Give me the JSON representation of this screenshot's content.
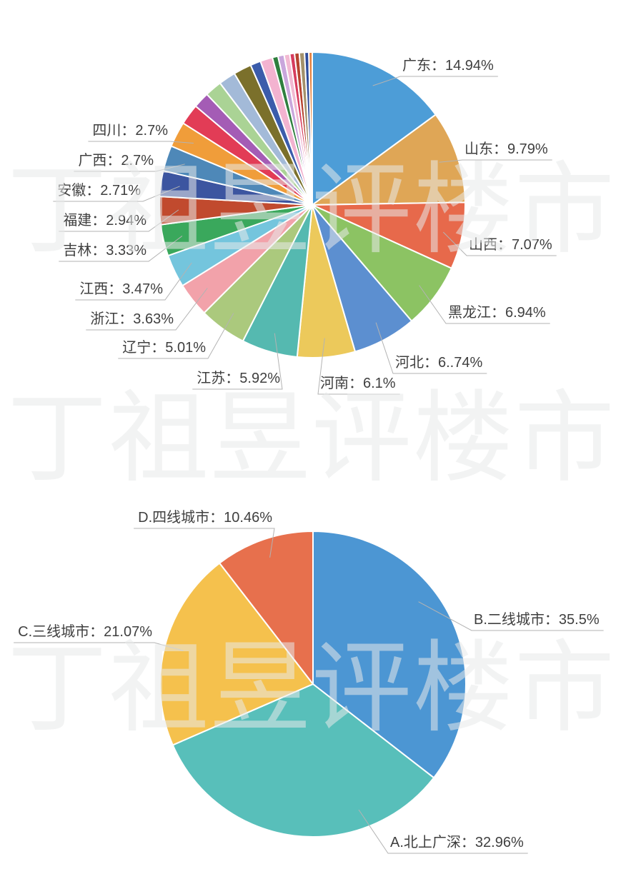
{
  "watermark": {
    "text": "丁祖昱评楼市",
    "color": "#ebebeb"
  },
  "chart_data": [
    {
      "type": "pie",
      "title": "",
      "legend_position": "none",
      "labels_style": "outside-leader-lines",
      "slices": [
        {
          "label": "广东",
          "value": 14.94,
          "display": "广东：14.94%",
          "color": "#4d9dd7",
          "labeled": true
        },
        {
          "label": "山东",
          "value": 9.79,
          "display": "山东：9.79%",
          "color": "#dfa656",
          "labeled": true
        },
        {
          "label": "山西",
          "value": 7.07,
          "display": "山西：7.07%",
          "color": "#e7694b",
          "labeled": true
        },
        {
          "label": "黑龙江",
          "value": 6.94,
          "display": "黑龙江：6.94%",
          "color": "#8cc363",
          "labeled": true
        },
        {
          "label": "河北",
          "value": 6.74,
          "display": "河北：6..74%",
          "color": "#5c8fd0",
          "labeled": true
        },
        {
          "label": "河南",
          "value": 6.1,
          "display": "河南：6.1%",
          "color": "#ecc95b",
          "labeled": true
        },
        {
          "label": "江苏",
          "value": 5.92,
          "display": "江苏：5.92%",
          "color": "#55b9b0",
          "labeled": true
        },
        {
          "label": "辽宁",
          "value": 5.01,
          "display": "辽宁：5.01%",
          "color": "#abc97d",
          "labeled": true
        },
        {
          "label": "浙江",
          "value": 3.63,
          "display": "浙江：3.63%",
          "color": "#f2a2aa",
          "labeled": true
        },
        {
          "label": "江西",
          "value": 3.47,
          "display": "江西：3.47%",
          "color": "#74c5dd",
          "labeled": true
        },
        {
          "label": "吉林",
          "value": 3.33,
          "display": "吉林：3.33%",
          "color": "#3aa85c",
          "labeled": true
        },
        {
          "label": "福建",
          "value": 2.94,
          "display": "福建：2.94%",
          "color": "#c14a2e",
          "labeled": true
        },
        {
          "label": "安徽",
          "value": 2.71,
          "display": "安徽：2.71%",
          "color": "#3c55a0",
          "labeled": true
        },
        {
          "label": "广西",
          "value": 2.7,
          "display": "广西：2.7%",
          "color": "#4e88b8",
          "labeled": true
        },
        {
          "label": "四川",
          "value": 2.7,
          "display": "四川：2.7%",
          "color": "#f09d3a",
          "labeled": true
        },
        {
          "label": "",
          "value": 2.2,
          "color": "#e23c56",
          "labeled": false,
          "estimated": true
        },
        {
          "label": "",
          "value": 1.7,
          "color": "#a45cb5",
          "labeled": false,
          "estimated": true
        },
        {
          "label": "",
          "value": 1.8,
          "color": "#aad395",
          "labeled": false,
          "estimated": true
        },
        {
          "label": "",
          "value": 1.8,
          "color": "#a3bad8",
          "labeled": false,
          "estimated": true
        },
        {
          "label": "",
          "value": 1.9,
          "color": "#7b702b",
          "labeled": false,
          "estimated": true
        },
        {
          "label": "",
          "value": 1.1,
          "color": "#3b5cab",
          "labeled": false,
          "estimated": true
        },
        {
          "label": "",
          "value": 1.3,
          "color": "#f3b3d0",
          "labeled": false,
          "estimated": true
        },
        {
          "label": "",
          "value": 0.6,
          "color": "#2e7f3e",
          "labeled": false,
          "estimated": true
        },
        {
          "label": "",
          "value": 0.65,
          "color": "#c9a6dc",
          "labeled": false,
          "estimated": true
        },
        {
          "label": "",
          "value": 0.6,
          "color": "#f2b9d2",
          "labeled": false,
          "estimated": true
        },
        {
          "label": "",
          "value": 0.5,
          "color": "#d63c5e",
          "labeled": false,
          "estimated": true
        },
        {
          "label": "",
          "value": 0.5,
          "color": "#b6432e",
          "labeled": false,
          "estimated": true
        },
        {
          "label": "",
          "value": 0.55,
          "color": "#a3916b",
          "labeled": false,
          "estimated": true
        },
        {
          "label": "",
          "value": 0.45,
          "color": "#2e4c9b",
          "labeled": false,
          "estimated": true
        },
        {
          "label": "",
          "value": 0.36,
          "color": "#e5813d",
          "labeled": false,
          "estimated": true
        }
      ]
    },
    {
      "type": "pie",
      "title": "",
      "legend_position": "none",
      "labels_style": "outside-leader-lines",
      "slices": [
        {
          "label": "B.二线城市",
          "value": 35.5,
          "display": "B.二线城市：35.5%",
          "color": "#4c96d3",
          "labeled": true
        },
        {
          "label": "A.北上广深",
          "value": 32.96,
          "display": "A.北上广深：32.96%",
          "color": "#58bfba",
          "labeled": true
        },
        {
          "label": "C.三线城市",
          "value": 21.07,
          "display": "C.三线城市：21.07%",
          "color": "#f5c14d",
          "labeled": true
        },
        {
          "label": "D.四线城市",
          "value": 10.46,
          "display": "D.四线城市：10.46%",
          "color": "#e7704d",
          "labeled": true
        }
      ]
    }
  ]
}
